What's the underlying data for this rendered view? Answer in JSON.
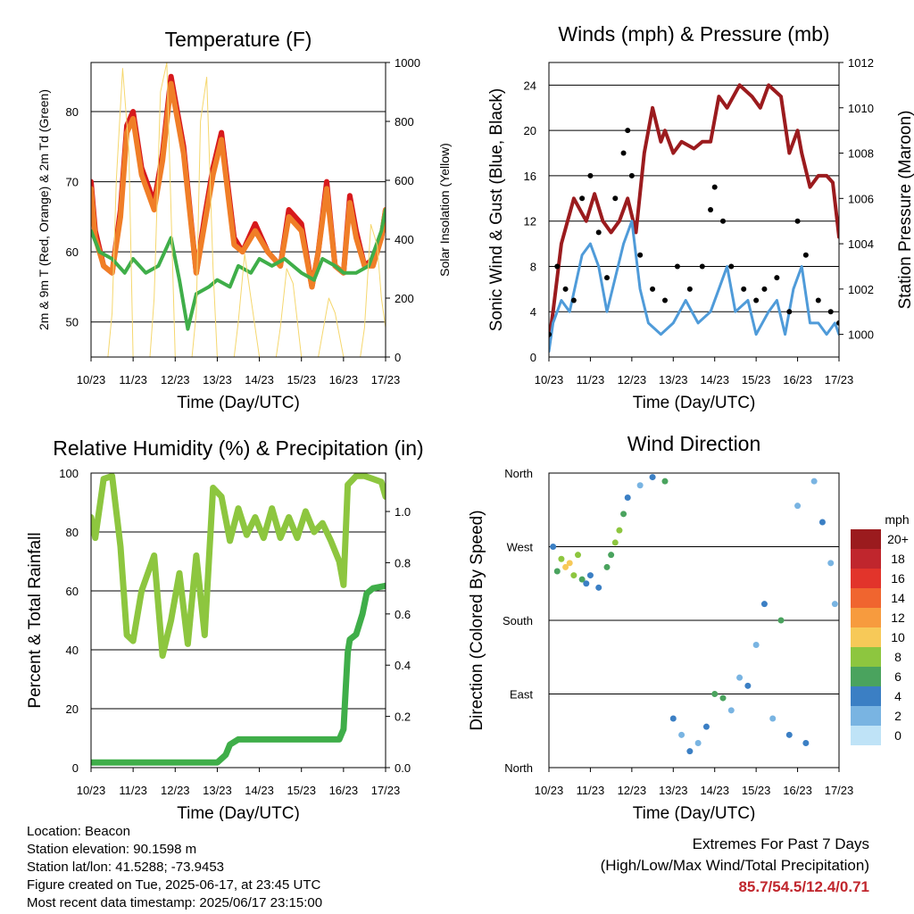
{
  "chart_data": [
    {
      "type": "line",
      "title": "Temperature (F)",
      "xlabel": "Time (Day/UTC)",
      "ylabel": "2m & 9m T (Red, Orange) & 2m Td (Green)",
      "y2label": "Solar Insolation (Yellow)",
      "x_ticks": [
        "10/23",
        "11/23",
        "12/23",
        "13/23",
        "14/23",
        "15/23",
        "16/23",
        "17/23"
      ],
      "xlim": [
        0,
        7
      ],
      "ylim": [
        45,
        87
      ],
      "y_ticks": [
        50,
        60,
        70,
        80
      ],
      "y2lim": [
        0,
        1000
      ],
      "y2_ticks": [
        0,
        200,
        400,
        600,
        800,
        1000
      ],
      "grid": true,
      "colors": {
        "t2m": "#d7191c",
        "t9m": "#f07e27",
        "td2m": "#3fae49",
        "solar": "#f5d76e"
      },
      "series": [
        {
          "name": "2m T",
          "x": [
            0,
            0.1,
            0.3,
            0.5,
            0.7,
            0.85,
            1.0,
            1.2,
            1.5,
            1.7,
            1.9,
            2.2,
            2.5,
            2.7,
            2.9,
            3.1,
            3.4,
            3.6,
            3.9,
            4.2,
            4.5,
            4.7,
            5.0,
            5.25,
            5.4,
            5.6,
            5.8,
            6.0,
            6.15,
            6.3,
            6.5,
            6.7,
            6.9,
            7.0
          ],
          "y": [
            70,
            63,
            58,
            57,
            66,
            78,
            80,
            72,
            67,
            74,
            85,
            75,
            57,
            65,
            72,
            77,
            62,
            60,
            64,
            60,
            58,
            66,
            64,
            55,
            60,
            70,
            58,
            57,
            68,
            63,
            58,
            59,
            62,
            66
          ]
        },
        {
          "name": "9m T",
          "x": [
            0,
            0.1,
            0.3,
            0.5,
            0.7,
            0.85,
            1.0,
            1.2,
            1.5,
            1.7,
            1.9,
            2.2,
            2.5,
            2.7,
            2.9,
            3.1,
            3.4,
            3.6,
            3.9,
            4.2,
            4.5,
            4.7,
            5.0,
            5.25,
            5.4,
            5.6,
            5.8,
            6.0,
            6.15,
            6.3,
            6.5,
            6.7,
            6.9,
            7.0
          ],
          "y": [
            69,
            62,
            58,
            57,
            65,
            77,
            79,
            71,
            66,
            73,
            84,
            74,
            57,
            64,
            71,
            76,
            61,
            60,
            63,
            60,
            58,
            65,
            63,
            55,
            60,
            69,
            58,
            57,
            67,
            62,
            58,
            58,
            62,
            66
          ]
        },
        {
          "name": "2m Td",
          "x": [
            0,
            0.2,
            0.5,
            0.8,
            1.0,
            1.3,
            1.6,
            1.9,
            2.1,
            2.3,
            2.5,
            2.8,
            3.0,
            3.3,
            3.5,
            3.8,
            4.0,
            4.3,
            4.6,
            5.0,
            5.3,
            5.5,
            5.8,
            6.0,
            6.3,
            6.6,
            6.9,
            7.0
          ],
          "y": [
            63,
            60,
            59,
            57,
            59,
            57,
            58,
            62,
            56,
            49,
            54,
            55,
            56,
            55,
            58,
            57,
            59,
            58,
            59,
            57,
            56,
            59,
            58,
            57,
            57,
            58,
            63,
            66
          ]
        },
        {
          "name": "Solar Insolation",
          "axis": "y2",
          "x": [
            0,
            0.05,
            0.2,
            0.4,
            0.5,
            0.6,
            0.75,
            0.9,
            1.0,
            1.4,
            1.5,
            1.65,
            1.8,
            2.0,
            2.4,
            2.5,
            2.6,
            2.75,
            2.9,
            3.0,
            3.4,
            3.5,
            3.65,
            3.8,
            4.0,
            4.4,
            4.5,
            4.65,
            4.8,
            5.0,
            5.4,
            5.5,
            5.65,
            5.8,
            6.0,
            6.4,
            6.5,
            6.65,
            6.8,
            6.9,
            7.0
          ],
          "y": [
            0,
            0,
            0,
            0,
            150,
            600,
            980,
            700,
            0,
            0,
            200,
            900,
            1000,
            0,
            0,
            150,
            800,
            950,
            300,
            0,
            0,
            120,
            350,
            200,
            0,
            0,
            100,
            300,
            250,
            0,
            0,
            80,
            200,
            150,
            0,
            0,
            100,
            450,
            380,
            200,
            100
          ]
        }
      ]
    },
    {
      "type": "scatter",
      "title": "Winds (mph) & Pressure (mb)",
      "xlabel": "Time (Day/UTC)",
      "ylabel": "Sonic Wind & Gust (Blue, Black)",
      "y2label": "Station Pressure (Maroon)",
      "x_ticks": [
        "10/23",
        "11/23",
        "12/23",
        "13/23",
        "14/23",
        "15/23",
        "16/23",
        "17/23"
      ],
      "xlim": [
        0,
        7
      ],
      "ylim": [
        0,
        26
      ],
      "y_ticks": [
        0,
        4,
        8,
        12,
        16,
        20,
        24
      ],
      "y2lim": [
        999,
        1012
      ],
      "y2_ticks": [
        1000,
        1002,
        1004,
        1006,
        1008,
        1010,
        1012
      ],
      "grid": true,
      "colors": {
        "wind": "#4f9bd9",
        "gust": "#000000",
        "pressure": "#9b1b1e"
      },
      "series": [
        {
          "name": "Station Pressure",
          "axis": "y2",
          "x": [
            0,
            0.1,
            0.3,
            0.6,
            0.9,
            1.1,
            1.3,
            1.5,
            1.7,
            1.9,
            2.1,
            2.3,
            2.5,
            2.7,
            2.8,
            3.0,
            3.2,
            3.5,
            3.7,
            3.9,
            4.1,
            4.3,
            4.6,
            4.9,
            5.1,
            5.3,
            5.6,
            5.8,
            6.0,
            6.1,
            6.3,
            6.5,
            6.7,
            6.85,
            7.0
          ],
          "y": [
            999.7,
            1001,
            1004,
            1006,
            1005,
            1006.2,
            1005,
            1004.5,
            1005,
            1006,
            1004.5,
            1008,
            1010,
            1008.5,
            1009,
            1008,
            1008.5,
            1008.2,
            1008.5,
            1008.5,
            1010.5,
            1010,
            1011,
            1010.5,
            1010,
            1011,
            1010.5,
            1008,
            1009,
            1008,
            1006.5,
            1007,
            1007,
            1006.7,
            1004.3
          ]
        },
        {
          "name": "Sonic Wind",
          "x": [
            0,
            0.1,
            0.3,
            0.5,
            0.8,
            1.0,
            1.2,
            1.4,
            1.6,
            1.8,
            2.0,
            2.2,
            2.4,
            2.7,
            3.0,
            3.3,
            3.6,
            3.9,
            4.1,
            4.3,
            4.5,
            4.8,
            5.0,
            5.3,
            5.5,
            5.7,
            5.9,
            6.1,
            6.3,
            6.5,
            6.7,
            6.9,
            7.0
          ],
          "y": [
            0.5,
            3,
            5,
            4,
            9,
            10,
            8,
            4,
            7,
            10,
            12,
            6,
            3,
            2,
            3,
            5,
            3,
            4,
            6,
            8,
            4,
            5,
            2,
            4,
            5,
            2,
            6,
            8,
            3,
            3,
            2,
            3,
            2
          ]
        },
        {
          "name": "Gust",
          "x": [
            0,
            0.2,
            0.4,
            0.6,
            0.8,
            1.0,
            1.2,
            1.4,
            1.6,
            1.8,
            1.9,
            2.0,
            2.2,
            2.5,
            2.8,
            3.1,
            3.4,
            3.7,
            3.9,
            4.0,
            4.2,
            4.4,
            4.7,
            5.0,
            5.2,
            5.5,
            5.8,
            6.0,
            6.2,
            6.5,
            6.8,
            7.0
          ],
          "y": [
            2,
            8,
            6,
            5,
            14,
            16,
            11,
            7,
            14,
            18,
            20,
            16,
            9,
            6,
            5,
            8,
            6,
            8,
            13,
            15,
            12,
            8,
            6,
            5,
            6,
            7,
            4,
            12,
            9,
            5,
            4,
            3
          ]
        }
      ]
    },
    {
      "type": "line",
      "title": "Relative Humidity (%) & Precipitation (in)",
      "xlabel": "Time (Day/UTC)",
      "ylabel": "Percent & Total Rainfall",
      "x_ticks": [
        "10/23",
        "11/23",
        "12/23",
        "13/23",
        "14/23",
        "15/23",
        "16/23",
        "17/23"
      ],
      "xlim": [
        0,
        7
      ],
      "ylim": [
        0,
        100
      ],
      "y_ticks": [
        0,
        20,
        40,
        60,
        80,
        100
      ],
      "y2lim": [
        0,
        1.15
      ],
      "y2_ticks": [
        "0.0",
        "0.2",
        "0.4",
        "0.6",
        "0.8",
        "1.0"
      ],
      "grid": true,
      "colors": {
        "rh": "#8dc63f",
        "precip": "#3fae49"
      },
      "series": [
        {
          "name": "Relative Humidity",
          "x": [
            0,
            0.1,
            0.3,
            0.5,
            0.7,
            0.85,
            1.0,
            1.2,
            1.5,
            1.7,
            1.9,
            2.1,
            2.3,
            2.5,
            2.7,
            2.9,
            3.1,
            3.3,
            3.5,
            3.7,
            3.9,
            4.1,
            4.3,
            4.5,
            4.7,
            4.9,
            5.1,
            5.3,
            5.5,
            5.7,
            5.9,
            6.0,
            6.1,
            6.3,
            6.5,
            6.7,
            6.9,
            7.0
          ],
          "y": [
            85,
            78,
            98,
            99,
            75,
            45,
            43,
            60,
            72,
            38,
            50,
            66,
            42,
            72,
            45,
            95,
            92,
            77,
            88,
            79,
            85,
            78,
            88,
            78,
            85,
            78,
            87,
            80,
            83,
            77,
            70,
            62,
            96,
            99,
            99,
            98,
            97,
            92
          ]
        },
        {
          "name": "Total Precipitation",
          "axis": "y2",
          "x": [
            0,
            1.0,
            2.0,
            3.0,
            3.2,
            3.3,
            3.5,
            4.0,
            5.0,
            5.9,
            6.0,
            6.05,
            6.1,
            6.15,
            6.3,
            6.45,
            6.55,
            6.7,
            7.0
          ],
          "y": [
            0.02,
            0.02,
            0.02,
            0.02,
            0.05,
            0.09,
            0.11,
            0.11,
            0.11,
            0.11,
            0.15,
            0.3,
            0.45,
            0.5,
            0.52,
            0.6,
            0.68,
            0.7,
            0.71
          ]
        }
      ]
    },
    {
      "type": "scatter",
      "title": "Wind Direction",
      "xlabel": "Time (Day/UTC)",
      "ylabel": "Direction (Colored By Speed)",
      "x_ticks": [
        "10/23",
        "11/23",
        "12/23",
        "13/23",
        "14/23",
        "15/23",
        "16/23",
        "17/23"
      ],
      "xlim": [
        0,
        7
      ],
      "ylim": [
        0,
        360
      ],
      "y_ticks": [
        "North",
        "East",
        "South",
        "West",
        "North"
      ],
      "grid": true,
      "colorbar": {
        "unit": "mph",
        "labels": [
          "20+",
          "18",
          "16",
          "14",
          "12",
          "10",
          "8",
          "6",
          "4",
          "2",
          "0"
        ],
        "colors": [
          "#9b1b1e",
          "#c0262d",
          "#e2342b",
          "#f0652f",
          "#f79b3e",
          "#f7c958",
          "#8dc63f",
          "#4aa35e",
          "#3b7fc4",
          "#79b4e2",
          "#bfe3f7"
        ]
      },
      "points": [
        {
          "x": 0.1,
          "y": 270,
          "s": 4
        },
        {
          "x": 0.2,
          "y": 240,
          "s": 6
        },
        {
          "x": 0.3,
          "y": 255,
          "s": 8
        },
        {
          "x": 0.4,
          "y": 245,
          "s": 10
        },
        {
          "x": 0.5,
          "y": 250,
          "s": 11
        },
        {
          "x": 0.6,
          "y": 235,
          "s": 8
        },
        {
          "x": 0.7,
          "y": 260,
          "s": 9
        },
        {
          "x": 0.8,
          "y": 230,
          "s": 6
        },
        {
          "x": 0.9,
          "y": 225,
          "s": 4
        },
        {
          "x": 1.0,
          "y": 235,
          "s": 5
        },
        {
          "x": 1.2,
          "y": 220,
          "s": 4
        },
        {
          "x": 1.4,
          "y": 245,
          "s": 6
        },
        {
          "x": 1.5,
          "y": 260,
          "s": 7
        },
        {
          "x": 1.6,
          "y": 275,
          "s": 9
        },
        {
          "x": 1.7,
          "y": 290,
          "s": 8
        },
        {
          "x": 1.8,
          "y": 310,
          "s": 6
        },
        {
          "x": 1.9,
          "y": 330,
          "s": 4
        },
        {
          "x": 2.2,
          "y": 345,
          "s": 3
        },
        {
          "x": 2.5,
          "y": 355,
          "s": 4
        },
        {
          "x": 2.8,
          "y": 350,
          "s": 6
        },
        {
          "x": 3.0,
          "y": 60,
          "s": 4
        },
        {
          "x": 3.2,
          "y": 40,
          "s": 3
        },
        {
          "x": 3.4,
          "y": 20,
          "s": 5
        },
        {
          "x": 3.6,
          "y": 30,
          "s": 2
        },
        {
          "x": 3.8,
          "y": 50,
          "s": 4
        },
        {
          "x": 4.0,
          "y": 90,
          "s": 7
        },
        {
          "x": 4.2,
          "y": 85,
          "s": 6
        },
        {
          "x": 4.4,
          "y": 70,
          "s": 3
        },
        {
          "x": 4.6,
          "y": 110,
          "s": 2
        },
        {
          "x": 4.8,
          "y": 100,
          "s": 4
        },
        {
          "x": 5.0,
          "y": 150,
          "s": 3
        },
        {
          "x": 5.2,
          "y": 200,
          "s": 4
        },
        {
          "x": 5.4,
          "y": 60,
          "s": 3
        },
        {
          "x": 5.6,
          "y": 180,
          "s": 7
        },
        {
          "x": 5.8,
          "y": 40,
          "s": 4
        },
        {
          "x": 6.0,
          "y": 320,
          "s": 3
        },
        {
          "x": 6.2,
          "y": 30,
          "s": 4
        },
        {
          "x": 6.4,
          "y": 350,
          "s": 3
        },
        {
          "x": 6.6,
          "y": 300,
          "s": 4
        },
        {
          "x": 6.8,
          "y": 250,
          "s": 3
        },
        {
          "x": 6.9,
          "y": 200,
          "s": 2
        }
      ]
    }
  ],
  "info": {
    "location": "Location: Beacon",
    "elevation": "Station elevation: 90.1598 m",
    "latlon": "Station lat/lon: 41.5288; -73.9453",
    "created": "Figure created on Tue, 2025-06-17, at 23:45 UTC",
    "recent": "Most recent data timestamp: 2025/06/17 23:15:00"
  },
  "extremes": {
    "line1": "Extremes For Past 7 Days",
    "line2": "(High/Low/Max Wind/Total Precipitation)",
    "values": "85.7/54.5/12.4/0.71"
  }
}
